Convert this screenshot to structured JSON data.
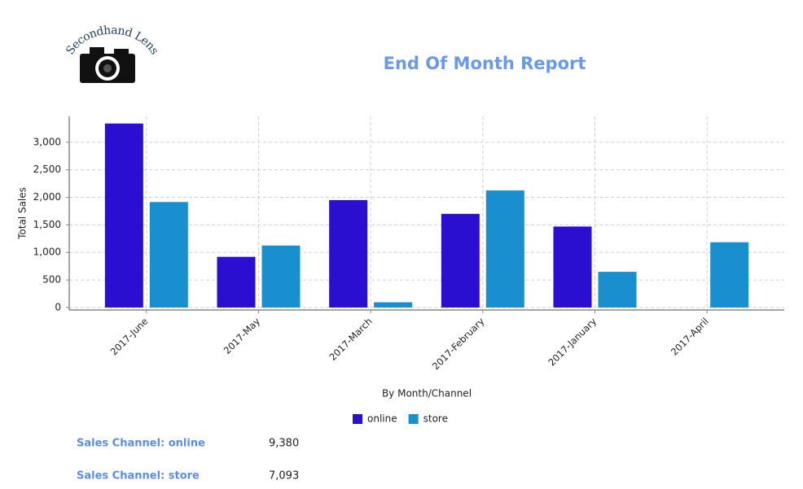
{
  "header": {
    "logo_text": "Secondhand Lens",
    "title": "End Of Month Report"
  },
  "chart_data": {
    "type": "bar",
    "x_label": "By Month/Channel",
    "y_label": "Total Sales",
    "categories": [
      "2017-June",
      "2017-May",
      "2017-March",
      "2017-February",
      "2017-January",
      "2017-April"
    ],
    "series": [
      {
        "name": "online",
        "color": "#2b0fd1",
        "values": [
          3340,
          920,
          1950,
          1700,
          1470,
          null
        ]
      },
      {
        "name": "store",
        "color": "#1a8fd0",
        "values": [
          1915,
          1125,
          95,
          2125,
          648,
          1185
        ]
      }
    ],
    "ylim": [
      -45,
      3470
    ],
    "yticks": [
      0,
      500,
      {
        "value": 1000,
        "label": "1,000"
      },
      {
        "value": 1500,
        "label": "1,500"
      },
      {
        "value": 2000,
        "label": "2,000"
      },
      {
        "value": 2500,
        "label": "2,500"
      },
      {
        "value": 3000,
        "label": "3,000"
      }
    ],
    "grid": true,
    "legend": "bottom"
  },
  "summary": [
    {
      "label": "Sales Channel: online",
      "value": "9,380"
    },
    {
      "label": "Sales Channel: store",
      "value": "7,093"
    }
  ]
}
